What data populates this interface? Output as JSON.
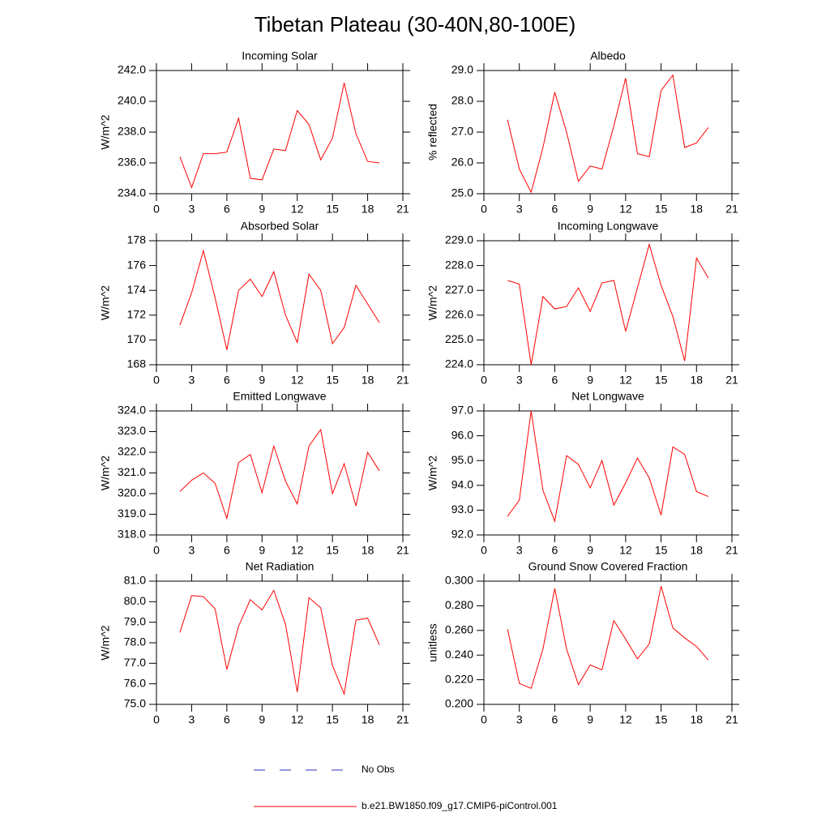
{
  "title": "Tibetan Plateau (30-40N,80-100E)",
  "legend": [
    {
      "name": "No Obs",
      "color": "#3030c0",
      "dashed": true
    },
    {
      "name": "b.e21.BW1850.f09_g17.CMIP6-piControl.001",
      "color": "#ff0000",
      "dashed": false
    }
  ],
  "chart_data": [
    {
      "type": "line",
      "title": "Incoming Solar",
      "y_label": "W/m^2",
      "color": "#ff0000",
      "x": [
        2,
        3,
        4,
        5,
        6,
        7,
        8,
        9,
        10,
        11,
        12,
        13,
        14,
        15,
        16,
        17,
        18,
        19
      ],
      "values": [
        236.4,
        234.4,
        236.6,
        236.6,
        236.7,
        238.9,
        235.0,
        234.9,
        236.9,
        236.8,
        239.4,
        238.5,
        236.2,
        237.6,
        241.2,
        237.9,
        236.1,
        236.0
      ],
      "xlim": [
        0,
        21
      ],
      "xticks": [
        0,
        3,
        6,
        9,
        12,
        15,
        18,
        21
      ],
      "ylim": [
        234,
        242
      ],
      "yticks": [
        {
          "value": 234,
          "label": "234.0"
        },
        {
          "value": 236,
          "label": "236.0"
        },
        {
          "value": 238,
          "label": "238.0"
        },
        {
          "value": 240,
          "label": "240.0"
        },
        {
          "value": 242,
          "label": "242.0"
        }
      ]
    },
    {
      "type": "line",
      "title": "Albedo",
      "y_label": "% reflected",
      "color": "#ff0000",
      "x": [
        2,
        3,
        4,
        5,
        6,
        7,
        8,
        9,
        10,
        11,
        12,
        13,
        14,
        15,
        16,
        17,
        18,
        19
      ],
      "values": [
        27.4,
        25.8,
        25.05,
        26.5,
        28.3,
        27.0,
        25.4,
        25.9,
        25.8,
        27.2,
        28.75,
        26.3,
        26.2,
        28.35,
        28.85,
        26.5,
        26.65,
        27.15
      ],
      "xlim": [
        0,
        21
      ],
      "xticks": [
        0,
        3,
        6,
        9,
        12,
        15,
        18,
        21
      ],
      "ylim": [
        25,
        29
      ],
      "yticks": [
        {
          "value": 25,
          "label": "25.0"
        },
        {
          "value": 26,
          "label": "26.0"
        },
        {
          "value": 27,
          "label": "27.0"
        },
        {
          "value": 28,
          "label": "28.0"
        },
        {
          "value": 29,
          "label": "29.0"
        }
      ]
    },
    {
      "type": "line",
      "title": "Absorbed Solar",
      "y_label": "W/m^2",
      "color": "#ff0000",
      "x": [
        2,
        3,
        4,
        5,
        6,
        7,
        8,
        9,
        10,
        11,
        12,
        13,
        14,
        15,
        16,
        17,
        18,
        19
      ],
      "values": [
        171.2,
        173.8,
        177.2,
        173.4,
        169.2,
        174.0,
        174.9,
        173.5,
        175.5,
        172.0,
        169.8,
        175.3,
        174.0,
        169.7,
        171.0,
        174.4,
        172.9,
        171.4
      ],
      "xlim": [
        0,
        21
      ],
      "xticks": [
        0,
        3,
        6,
        9,
        12,
        15,
        18,
        21
      ],
      "ylim": [
        168,
        178
      ],
      "yticks": [
        168,
        170,
        172,
        174,
        176,
        178
      ]
    },
    {
      "type": "line",
      "title": "Incoming Longwave",
      "y_label": "W/m^2",
      "color": "#ff0000",
      "x": [
        2,
        3,
        4,
        5,
        6,
        7,
        8,
        9,
        10,
        11,
        12,
        13,
        14,
        15,
        16,
        17,
        18,
        19
      ],
      "values": [
        227.4,
        227.25,
        224.0,
        226.75,
        226.25,
        226.35,
        227.1,
        226.15,
        227.3,
        227.4,
        225.35,
        227.1,
        228.85,
        227.2,
        225.95,
        224.15,
        228.3,
        227.5
      ],
      "xlim": [
        0,
        21
      ],
      "xticks": [
        0,
        3,
        6,
        9,
        12,
        15,
        18,
        21
      ],
      "ylim": [
        224,
        229
      ],
      "yticks": [
        {
          "value": 224,
          "label": "224.0"
        },
        {
          "value": 225,
          "label": "225.0"
        },
        {
          "value": 226,
          "label": "226.0"
        },
        {
          "value": 227,
          "label": "227.0"
        },
        {
          "value": 228,
          "label": "228.0"
        },
        {
          "value": 229,
          "label": "229.0"
        }
      ]
    },
    {
      "type": "line",
      "title": "Emitted Longwave",
      "y_label": "W/m^2",
      "color": "#ff0000",
      "x": [
        2,
        3,
        4,
        5,
        6,
        7,
        8,
        9,
        10,
        11,
        12,
        13,
        14,
        15,
        16,
        17,
        18,
        19
      ],
      "values": [
        320.1,
        320.65,
        321.0,
        320.5,
        318.8,
        321.5,
        321.9,
        320.05,
        322.3,
        320.6,
        319.5,
        322.3,
        323.1,
        320.0,
        321.45,
        319.4,
        322.0,
        321.1
      ],
      "xlim": [
        0,
        21
      ],
      "xticks": [
        0,
        3,
        6,
        9,
        12,
        15,
        18,
        21
      ],
      "ylim": [
        318,
        324
      ],
      "yticks": [
        {
          "value": 318,
          "label": "318.0"
        },
        {
          "value": 319,
          "label": "319.0"
        },
        {
          "value": 320,
          "label": "320.0"
        },
        {
          "value": 321,
          "label": "321.0"
        },
        {
          "value": 322,
          "label": "322.0"
        },
        {
          "value": 323,
          "label": "323.0"
        },
        {
          "value": 324,
          "label": "324.0"
        }
      ]
    },
    {
      "type": "line",
      "title": "Net Longwave",
      "y_label": "W/m^2",
      "color": "#ff0000",
      "x": [
        2,
        3,
        4,
        5,
        6,
        7,
        8,
        9,
        10,
        11,
        12,
        13,
        14,
        15,
        16,
        17,
        18,
        19
      ],
      "values": [
        92.75,
        93.4,
        97.0,
        93.8,
        92.55,
        95.2,
        94.85,
        93.9,
        95.0,
        93.2,
        94.1,
        95.1,
        94.3,
        92.8,
        95.55,
        95.25,
        93.75,
        93.55
      ],
      "xlim": [
        0,
        21
      ],
      "xticks": [
        0,
        3,
        6,
        9,
        12,
        15,
        18,
        21
      ],
      "ylim": [
        92,
        97
      ],
      "yticks": [
        {
          "value": 92,
          "label": "92.0"
        },
        {
          "value": 93,
          "label": "93.0"
        },
        {
          "value": 94,
          "label": "94.0"
        },
        {
          "value": 95,
          "label": "95.0"
        },
        {
          "value": 96,
          "label": "96.0"
        },
        {
          "value": 97,
          "label": "97.0"
        }
      ]
    },
    {
      "type": "line",
      "title": "Net Radiation",
      "y_label": "W/m^2",
      "color": "#ff0000",
      "x": [
        2,
        3,
        4,
        5,
        6,
        7,
        8,
        9,
        10,
        11,
        12,
        13,
        14,
        15,
        16,
        17,
        18,
        19
      ],
      "values": [
        78.5,
        80.3,
        80.25,
        79.65,
        76.7,
        78.8,
        80.1,
        79.6,
        80.55,
        78.9,
        75.6,
        80.2,
        79.7,
        76.9,
        75.5,
        79.1,
        79.2,
        77.9
      ],
      "xlim": [
        0,
        21
      ],
      "xticks": [
        0,
        3,
        6,
        9,
        12,
        15,
        18,
        21
      ],
      "ylim": [
        75,
        81
      ],
      "yticks": [
        {
          "value": 75,
          "label": "75.0"
        },
        {
          "value": 76,
          "label": "76.0"
        },
        {
          "value": 77,
          "label": "77.0"
        },
        {
          "value": 78,
          "label": "78.0"
        },
        {
          "value": 79,
          "label": "79.0"
        },
        {
          "value": 80,
          "label": "80.0"
        },
        {
          "value": 81,
          "label": "81.0"
        }
      ]
    },
    {
      "type": "line",
      "title": "Ground Snow Covered Fraction",
      "y_label": "unitless",
      "color": "#ff0000",
      "x": [
        2,
        3,
        4,
        5,
        6,
        7,
        8,
        9,
        10,
        11,
        12,
        13,
        14,
        15,
        16,
        17,
        18,
        19
      ],
      "values": [
        0.261,
        0.217,
        0.213,
        0.245,
        0.294,
        0.245,
        0.216,
        0.232,
        0.228,
        0.268,
        0.253,
        0.237,
        0.249,
        0.296,
        0.262,
        0.254,
        0.247,
        0.236
      ],
      "xlim": [
        0,
        21
      ],
      "xticks": [
        0,
        3,
        6,
        9,
        12,
        15,
        18,
        21
      ],
      "ylim": [
        0.2,
        0.3
      ],
      "yticks": [
        {
          "value": 0.2,
          "label": "0.200"
        },
        {
          "value": 0.22,
          "label": "0.220"
        },
        {
          "value": 0.24,
          "label": "0.240"
        },
        {
          "value": 0.26,
          "label": "0.260"
        },
        {
          "value": 0.28,
          "label": "0.280"
        },
        {
          "value": 0.3,
          "label": "0.300"
        }
      ]
    }
  ]
}
